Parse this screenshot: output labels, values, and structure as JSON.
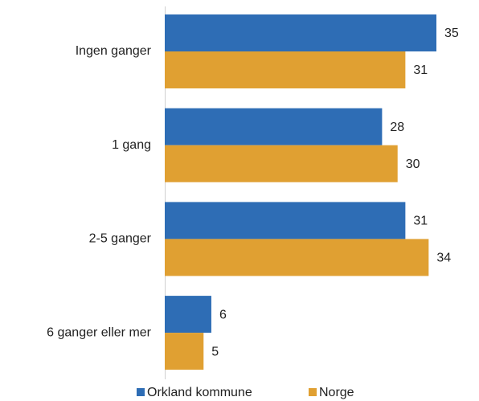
{
  "chart_data": {
    "type": "bar",
    "orientation": "horizontal",
    "categories": [
      "Ingen ganger",
      "1 gang",
      "2-5 ganger",
      "6 ganger eller mer"
    ],
    "series": [
      {
        "name": "Orkland kommune",
        "color": "#2e6db5",
        "values": [
          35,
          28,
          31,
          6
        ]
      },
      {
        "name": "Norge",
        "color": "#e0a032",
        "values": [
          31,
          30,
          34,
          5
        ]
      }
    ],
    "legend": "bottom"
  }
}
